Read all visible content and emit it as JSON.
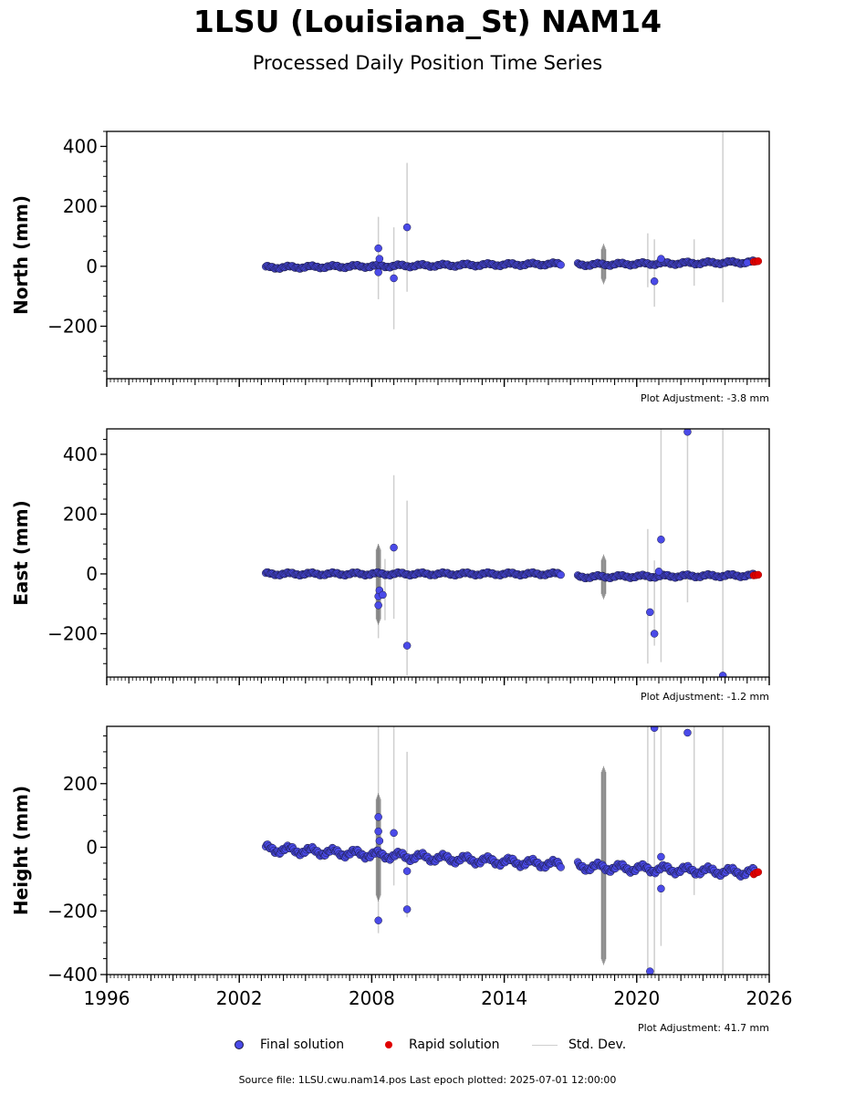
{
  "figure": {
    "title": "1LSU (Louisiana_St) NAM14",
    "subtitle": "Processed Daily Position Time Series",
    "footer": "Source file: 1LSU.cwu.nam14.pos  Last epoch plotted: 2025-07-01 12:00:00"
  },
  "legend": {
    "final_label": "Final solution",
    "rapid_label": "Rapid solution",
    "std_label": "Std. Dev."
  },
  "colors": {
    "final": "#4a4ae8",
    "final_edge": "#1a1a40",
    "rapid": "#e00000",
    "std": "#cfcfcf",
    "std_dense": "#555555"
  },
  "chart_data": [
    {
      "type": "scatter",
      "ylabel": "North (mm)",
      "adjustment": "Plot Adjustment: -3.8 mm",
      "xlim": [
        1996,
        2026
      ],
      "ylim": [
        -375,
        450
      ],
      "xticks": [
        1996,
        2002,
        2008,
        2014,
        2020,
        2026
      ],
      "yticks": [
        -200,
        0,
        200,
        400
      ],
      "data_start": 2003.2,
      "data_end": 2025.5,
      "gap": [
        2016.6,
        2017.3
      ],
      "trend": [
        [
          2003.2,
          -4
        ],
        [
          2016.6,
          8
        ],
        [
          2017.3,
          5
        ],
        [
          2025.5,
          14
        ]
      ],
      "amplitude": 4,
      "outliers": [
        [
          2008.3,
          60
        ],
        [
          2008.35,
          25
        ],
        [
          2008.3,
          -20
        ],
        [
          2009.0,
          -40
        ],
        [
          2009.6,
          130
        ],
        [
          2020.8,
          -50
        ],
        [
          2021.1,
          25
        ],
        [
          2025.0,
          12
        ]
      ],
      "rapid": [
        [
          2025.3,
          15
        ],
        [
          2025.4,
          16
        ],
        [
          2025.5,
          17
        ]
      ],
      "stddev": [
        [
          2008.3,
          -110,
          165
        ],
        [
          2009.0,
          -210,
          130
        ],
        [
          2009.6,
          -85,
          345
        ],
        [
          2020.5,
          -70,
          110
        ],
        [
          2020.8,
          -135,
          90
        ],
        [
          2022.6,
          -65,
          90
        ],
        [
          2023.9,
          -120,
          450
        ]
      ],
      "dense_std": [
        [
          2018.5,
          -60,
          75
        ]
      ]
    },
    {
      "type": "scatter",
      "ylabel": "East (mm)",
      "adjustment": "Plot Adjustment: -1.2 mm",
      "xlim": [
        1996,
        2026
      ],
      "ylim": [
        -345,
        485
      ],
      "xticks": [
        1996,
        2002,
        2008,
        2014,
        2020,
        2026
      ],
      "yticks": [
        -200,
        0,
        200,
        400
      ],
      "data_start": 2003.2,
      "data_end": 2025.5,
      "gap": [
        2016.6,
        2017.3
      ],
      "trend": [
        [
          2003.2,
          0
        ],
        [
          2016.6,
          0
        ],
        [
          2017.3,
          -10
        ],
        [
          2025.5,
          -5
        ]
      ],
      "amplitude": 4,
      "outliers": [
        [
          2008.3,
          -105
        ],
        [
          2008.3,
          -75
        ],
        [
          2008.35,
          -55
        ],
        [
          2008.5,
          -70
        ],
        [
          2009.0,
          88
        ],
        [
          2009.6,
          -240
        ],
        [
          2020.6,
          -128
        ],
        [
          2020.8,
          -200
        ],
        [
          2021.1,
          115
        ],
        [
          2021.0,
          8
        ],
        [
          2022.3,
          475
        ],
        [
          2023.9,
          -340
        ]
      ],
      "rapid": [
        [
          2025.3,
          -5
        ],
        [
          2025.4,
          -4
        ],
        [
          2025.5,
          -3
        ]
      ],
      "stddev": [
        [
          2008.3,
          -215,
          100
        ],
        [
          2008.6,
          -155,
          50
        ],
        [
          2009.0,
          -150,
          330
        ],
        [
          2009.6,
          -340,
          245
        ],
        [
          2020.5,
          -300,
          150
        ],
        [
          2020.8,
          -240,
          45
        ],
        [
          2021.1,
          -295,
          485
        ],
        [
          2022.3,
          -95,
          485
        ],
        [
          2023.9,
          -345,
          485
        ]
      ],
      "dense_std": [
        [
          2008.3,
          -170,
          100
        ],
        [
          2018.5,
          -85,
          65
        ]
      ]
    },
    {
      "type": "scatter",
      "ylabel": "Height (mm)",
      "adjustment": "Plot Adjustment: 41.7 mm",
      "xlim": [
        1996,
        2026
      ],
      "ylim": [
        -400,
        380
      ],
      "xticks": [
        1996,
        2002,
        2008,
        2014,
        2020,
        2026
      ],
      "xtick_labels": [
        "1996",
        "2002",
        "2008",
        "2014",
        "2020",
        "2026"
      ],
      "yticks": [
        -400,
        -200,
        0,
        200
      ],
      "data_start": 2003.2,
      "data_end": 2025.5,
      "gap": [
        2016.6,
        2017.3
      ],
      "trend": [
        [
          2003.2,
          -5
        ],
        [
          2016.6,
          -55
        ],
        [
          2017.3,
          -60
        ],
        [
          2025.5,
          -80
        ]
      ],
      "amplitude": 10,
      "outliers": [
        [
          2008.3,
          95
        ],
        [
          2008.3,
          50
        ],
        [
          2008.35,
          20
        ],
        [
          2008.3,
          -230
        ],
        [
          2009.0,
          45
        ],
        [
          2009.6,
          -75
        ],
        [
          2009.6,
          -195
        ],
        [
          2020.6,
          -390
        ],
        [
          2020.8,
          375
        ],
        [
          2021.1,
          -130
        ],
        [
          2021.1,
          -30
        ],
        [
          2022.3,
          360
        ]
      ],
      "rapid": [
        [
          2025.3,
          -85
        ],
        [
          2025.4,
          -80
        ],
        [
          2025.5,
          -78
        ]
      ],
      "stddev": [
        [
          2008.3,
          -270,
          380
        ],
        [
          2009.0,
          -120,
          380
        ],
        [
          2009.6,
          -220,
          300
        ],
        [
          2020.5,
          -400,
          380
        ],
        [
          2020.8,
          -400,
          380
        ],
        [
          2021.1,
          -310,
          380
        ],
        [
          2022.6,
          -150,
          380
        ],
        [
          2023.9,
          -400,
          380
        ]
      ],
      "dense_std": [
        [
          2008.3,
          -170,
          170
        ],
        [
          2018.5,
          -370,
          255
        ]
      ]
    }
  ]
}
